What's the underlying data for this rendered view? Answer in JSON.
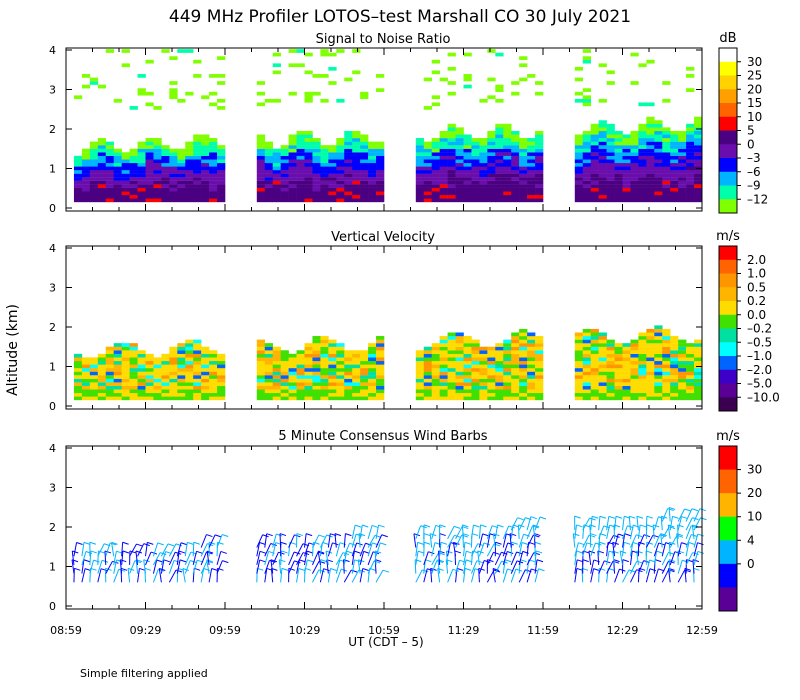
{
  "title": "449 MHz Profiler LOTOS–test Marshall CO 30 July 2021",
  "ylabel": "Altitude (km)",
  "xlabel": "UT   (CDT – 5)",
  "footnote": "Simple filtering applied",
  "x_ticks": [
    "08:59",
    "09:29",
    "09:59",
    "10:29",
    "10:59",
    "11:29",
    "11:59",
    "12:29",
    "12:59"
  ],
  "y_ticks": [
    "0",
    "1",
    "2",
    "3",
    "4"
  ],
  "chart_data": [
    {
      "type": "heatmap",
      "title": "Signal to Noise Ratio",
      "unit": "dB",
      "x_range": [
        "08:59",
        "12:59"
      ],
      "ylim": [
        0,
        4
      ],
      "colorbar": {
        "labels": [
          "30",
          "25",
          "20",
          "15",
          "10",
          "5",
          "0",
          "–3",
          "–6",
          "–9",
          "–12"
        ],
        "colors": [
          "#ffffff",
          "#ffff00",
          "#ffd200",
          "#ffa000",
          "#ff6400",
          "#ff0000",
          "#4b0082",
          "#6a0dad",
          "#0000ff",
          "#00b4ff",
          "#00ffaa",
          "#80ff00"
        ]
      },
      "data_gaps_ut": [
        [
          "09:59",
          "10:09"
        ],
        [
          "10:59",
          "11:09"
        ],
        [
          "11:59",
          "12:09"
        ]
      ],
      "description_levels": "violet/purple below ~1 km, blue-cyan near 1–1.5 km, green up to ~2 km, scattered green echoes 2.5–4 km"
    },
    {
      "type": "heatmap",
      "title": "Vertical Velocity",
      "unit": "m/s",
      "x_range": [
        "08:59",
        "12:59"
      ],
      "ylim": [
        0,
        4
      ],
      "colorbar": {
        "labels": [
          "2.0",
          "1.0",
          "0.5",
          "0.2",
          "0.0",
          "–0.2",
          "–0.5",
          "–1.0",
          "–2.0",
          "–5.0",
          "–10.0"
        ],
        "colors": [
          "#ff0000",
          "#ff6400",
          "#ff9600",
          "#ffb400",
          "#ffdc00",
          "#40e000",
          "#00e0a0",
          "#00ffff",
          "#0064ff",
          "#3c00c8",
          "#5a0096",
          "#3c0050"
        ]
      }
    },
    {
      "type": "wind_barbs",
      "title": "5 Minute Consensus Wind Barbs",
      "unit": "m/s",
      "x_range": [
        "08:59",
        "12:59"
      ],
      "ylim": [
        0,
        4
      ],
      "colorbar": {
        "labels": [
          "30",
          "20",
          "10",
          "4",
          "0"
        ],
        "colors": [
          "#ff0000",
          "#ff6400",
          "#ffb400",
          "#00ff00",
          "#00b4ff",
          "#0000ff",
          "#5a0096"
        ]
      }
    }
  ]
}
